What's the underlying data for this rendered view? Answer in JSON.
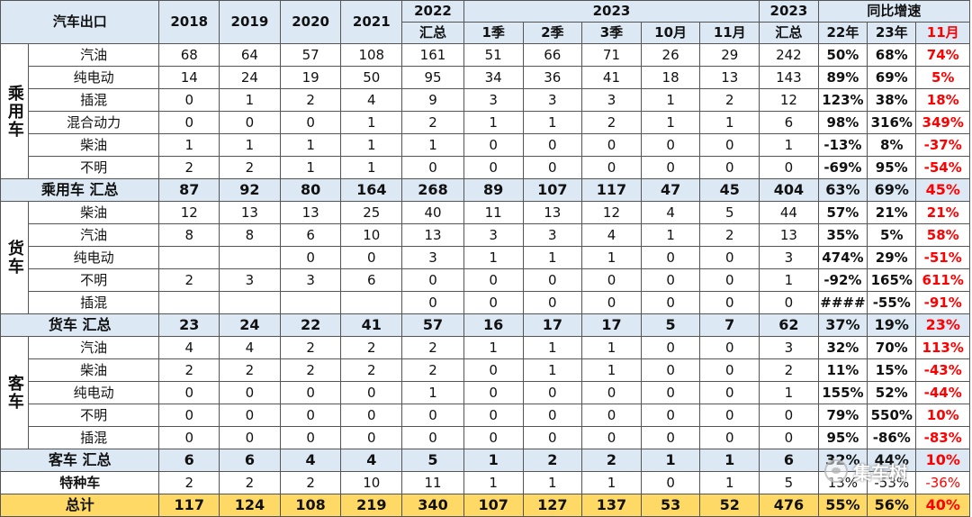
{
  "header": {
    "corner": "汽车出口",
    "years": [
      "2018",
      "2019",
      "2020",
      "2021"
    ],
    "y2022": [
      "2022",
      "汇总"
    ],
    "y2023": "2023",
    "periods": [
      "1季",
      "2季",
      "3季",
      "10月",
      "11月"
    ],
    "y2023total": [
      "2023",
      "汇总"
    ],
    "growth": "同比增速",
    "growth_cols": [
      "22年",
      "23年",
      "11月"
    ]
  },
  "groups": [
    {
      "name": "乘用车",
      "rows": [
        {
          "label": "汽油",
          "v": [
            "68",
            "64",
            "57",
            "108",
            "161",
            "51",
            "66",
            "71",
            "26",
            "29",
            "242"
          ],
          "g": [
            "50%",
            "68%",
            "74%"
          ]
        },
        {
          "label": "纯电动",
          "v": [
            "14",
            "24",
            "19",
            "50",
            "95",
            "34",
            "36",
            "41",
            "18",
            "13",
            "143"
          ],
          "g": [
            "89%",
            "69%",
            "5%"
          ]
        },
        {
          "label": "插混",
          "v": [
            "0",
            "1",
            "2",
            "4",
            "9",
            "3",
            "3",
            "3",
            "1",
            "2",
            "12"
          ],
          "g": [
            "123%",
            "38%",
            "18%"
          ]
        },
        {
          "label": "混合动力",
          "v": [
            "0",
            "0",
            "0",
            "1",
            "2",
            "1",
            "1",
            "2",
            "1",
            "1",
            "6"
          ],
          "g": [
            "98%",
            "316%",
            "349%"
          ]
        },
        {
          "label": "柴油",
          "v": [
            "1",
            "1",
            "1",
            "1",
            "1",
            "0",
            "0",
            "0",
            "0",
            "0",
            "1"
          ],
          "g": [
            "-13%",
            "8%",
            "-37%"
          ]
        },
        {
          "label": "不明",
          "v": [
            "2",
            "2",
            "1",
            "1",
            "0",
            "0",
            "0",
            "0",
            "0",
            "0",
            "0"
          ],
          "g": [
            "-69%",
            "95%",
            "-54%"
          ]
        }
      ],
      "subtotal": {
        "label": "乘用车 汇总",
        "v": [
          "87",
          "92",
          "80",
          "164",
          "268",
          "89",
          "107",
          "117",
          "47",
          "45",
          "404"
        ],
        "g": [
          "63%",
          "69%",
          "45%"
        ]
      }
    },
    {
      "name": "货车",
      "rows": [
        {
          "label": "柴油",
          "v": [
            "12",
            "13",
            "13",
            "25",
            "40",
            "11",
            "13",
            "12",
            "4",
            "5",
            "44"
          ],
          "g": [
            "57%",
            "21%",
            "21%"
          ]
        },
        {
          "label": "汽油",
          "v": [
            "8",
            "8",
            "6",
            "10",
            "13",
            "3",
            "3",
            "4",
            "1",
            "2",
            "13"
          ],
          "g": [
            "35%",
            "5%",
            "58%"
          ]
        },
        {
          "label": "纯电动",
          "v": [
            "",
            "",
            "0",
            "0",
            "3",
            "1",
            "1",
            "1",
            "0",
            "0",
            "3"
          ],
          "g": [
            "474%",
            "29%",
            "-51%"
          ]
        },
        {
          "label": "不明",
          "v": [
            "2",
            "3",
            "3",
            "6",
            "0",
            "0",
            "0",
            "0",
            "0",
            "0",
            "1"
          ],
          "g": [
            "-92%",
            "165%",
            "611%"
          ]
        },
        {
          "label": "插混",
          "v": [
            "",
            "",
            "",
            "",
            "0",
            "0",
            "0",
            "0",
            "0",
            "0",
            "0"
          ],
          "g": [
            "####",
            "-55%",
            "-91%"
          ]
        }
      ],
      "subtotal": {
        "label": "货车 汇总",
        "v": [
          "23",
          "24",
          "22",
          "41",
          "57",
          "16",
          "17",
          "17",
          "5",
          "7",
          "62"
        ],
        "g": [
          "37%",
          "19%",
          "23%"
        ]
      }
    },
    {
      "name": "客车",
      "rows": [
        {
          "label": "汽油",
          "v": [
            "4",
            "4",
            "2",
            "2",
            "2",
            "1",
            "1",
            "1",
            "0",
            "0",
            "3"
          ],
          "g": [
            "32%",
            "70%",
            "113%"
          ]
        },
        {
          "label": "柴油",
          "v": [
            "2",
            "2",
            "2",
            "2",
            "2",
            "0",
            "1",
            "1",
            "0",
            "0",
            "2"
          ],
          "g": [
            "11%",
            "15%",
            "-43%"
          ]
        },
        {
          "label": "纯电动",
          "v": [
            "0",
            "0",
            "0",
            "0",
            "1",
            "0",
            "0",
            "0",
            "0",
            "0",
            "1"
          ],
          "g": [
            "155%",
            "52%",
            "-44%"
          ]
        },
        {
          "label": "不明",
          "v": [
            "0",
            "0",
            "0",
            "0",
            "0",
            "0",
            "0",
            "0",
            "0",
            "0",
            "0"
          ],
          "g": [
            "79%",
            "550%",
            "10%"
          ]
        },
        {
          "label": "插混",
          "v": [
            "0",
            "0",
            "0",
            "0",
            "0",
            "0",
            "0",
            "0",
            "0",
            "0",
            "0"
          ],
          "g": [
            "95%",
            "-86%",
            "-83%"
          ]
        }
      ],
      "subtotal": {
        "label": "客车 汇总",
        "v": [
          "6",
          "6",
          "4",
          "4",
          "5",
          "1",
          "2",
          "2",
          "1",
          "1",
          "6"
        ],
        "g": [
          "32%",
          "44%",
          "10%"
        ]
      }
    }
  ],
  "special": {
    "label": "特种车",
    "v": [
      "2",
      "2",
      "2",
      "10",
      "11",
      "1",
      "1",
      "1",
      "0",
      "1",
      "5"
    ],
    "g": [
      "13%",
      "-53%",
      "-36%"
    ]
  },
  "total": {
    "label": "总计",
    "v": [
      "117",
      "124",
      "108",
      "219",
      "340",
      "107",
      "127",
      "137",
      "53",
      "52",
      "476"
    ],
    "g": [
      "55%",
      "56%",
      "40%"
    ]
  },
  "watermark": "集车树",
  "colors": {
    "header_bg": "#dce9f5",
    "total_bg": "#ffd966",
    "highlight": "#ff0000"
  }
}
